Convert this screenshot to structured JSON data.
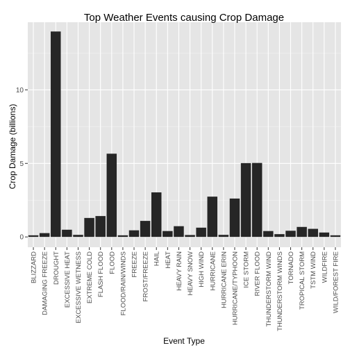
{
  "chart_data": {
    "type": "bar",
    "title": "Top Weather Events causing Crop Damage",
    "xlabel": "Event Type",
    "ylabel": "Crop Damage (billions)",
    "ylim": [
      -0.7,
      14.6
    ],
    "y_ticks": [
      0,
      5,
      10
    ],
    "grid": true,
    "colors": {
      "bar": "#262626",
      "panel_background": "#e5e5e5",
      "grid_major": "#ffffff",
      "grid_minor": "#f2f2f2",
      "tick_text": "#4d4d4d",
      "text": "#000000"
    },
    "categories": [
      "BLIZZARD",
      "DAMAGING FREEZE",
      "DROUGHT",
      "EXCESSIVE HEAT",
      "EXCESSIVE WETNESS",
      "EXTREME COLD",
      "FLASH FLOOD",
      "FLOOD",
      "FLOOD/RAIN/WINDS",
      "FREEZE",
      "FROST/FREEZE",
      "HAIL",
      "HEAT",
      "HEAVY RAIN",
      "HEAVY SNOW",
      "HIGH WIND",
      "HURRICANE",
      "HURRICANE ERIN",
      "HURRICANE/TYPHOON",
      "ICE STORM",
      "RIVER FLOOD",
      "THUNDERSTORM WIND",
      "THUNDERSTORM WINDS",
      "TORNADO",
      "TROPICAL STORM",
      "TSTM WIND",
      "WILDFIRE",
      "WILD/FOREST FIRE"
    ],
    "values": [
      0.11,
      0.26,
      13.97,
      0.49,
      0.14,
      1.29,
      1.42,
      5.66,
      0.11,
      0.45,
      1.09,
      3.03,
      0.4,
      0.73,
      0.13,
      0.63,
      2.74,
      0.14,
      2.61,
      5.02,
      5.03,
      0.4,
      0.19,
      0.42,
      0.68,
      0.55,
      0.3,
      0.11
    ]
  }
}
